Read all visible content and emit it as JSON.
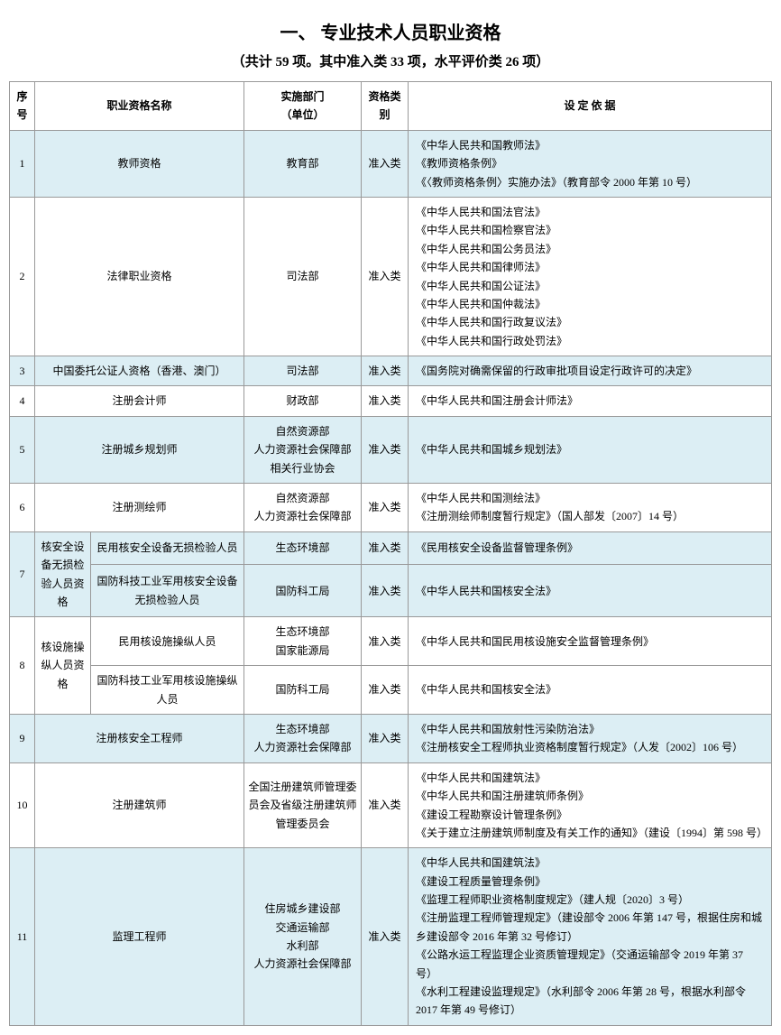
{
  "title": "一、 专业技术人员职业资格",
  "subtitle": "（共计 59 项。其中准入类 33 项，水平评价类 26 项）",
  "headers": {
    "seq": "序号",
    "name": "职业资格名称",
    "dept": "实施部门\n（单位）",
    "cat": "资格类别",
    "basis": "设 定 依 据"
  },
  "rows": {
    "r1": {
      "seq": "1",
      "name": "教师资格",
      "dept": "教育部",
      "cat": "准入类",
      "basis": "《中华人民共和国教师法》\n《教师资格条例》\n《〈教师资格条例〉实施办法》（教育部令 2000 年第 10 号）"
    },
    "r2": {
      "seq": "2",
      "name": "法律职业资格",
      "dept": "司法部",
      "cat": "准入类",
      "basis": "《中华人民共和国法官法》\n《中华人民共和国检察官法》\n《中华人民共和国公务员法》\n《中华人民共和国律师法》\n《中华人民共和国公证法》\n《中华人民共和国仲裁法》\n《中华人民共和国行政复议法》\n《中华人民共和国行政处罚法》"
    },
    "r3": {
      "seq": "3",
      "name": "中国委托公证人资格（香港、澳门）",
      "dept": "司法部",
      "cat": "准入类",
      "basis": "《国务院对确需保留的行政审批项目设定行政许可的决定》"
    },
    "r4": {
      "seq": "4",
      "name": "注册会计师",
      "dept": "财政部",
      "cat": "准入类",
      "basis": "《中华人民共和国注册会计师法》"
    },
    "r5": {
      "seq": "5",
      "name": "注册城乡规划师",
      "dept": "自然资源部\n人力资源社会保障部\n相关行业协会",
      "cat": "准入类",
      "basis": "《中华人民共和国城乡规划法》"
    },
    "r6": {
      "seq": "6",
      "name": "注册测绘师",
      "dept": "自然资源部\n人力资源社会保障部",
      "cat": "准入类",
      "basis": "《中华人民共和国测绘法》\n《注册测绘师制度暂行规定》（国人部发〔2007〕14 号）"
    },
    "r7": {
      "seq": "7",
      "group": "核安全设备无损检验人员资格",
      "a_name": "民用核安全设备无损检验人员",
      "a_dept": "生态环境部",
      "a_cat": "准入类",
      "a_basis": "《民用核安全设备监督管理条例》",
      "b_name": "国防科技工业军用核安全设备无损检验人员",
      "b_dept": "国防科工局",
      "b_cat": "准入类",
      "b_basis": "《中华人民共和国核安全法》"
    },
    "r8": {
      "seq": "8",
      "group": "核设施操纵人员资格",
      "a_name": "民用核设施操纵人员",
      "a_dept": "生态环境部\n国家能源局",
      "a_cat": "准入类",
      "a_basis": "《中华人民共和国民用核设施安全监督管理条例》",
      "b_name": "国防科技工业军用核设施操纵人员",
      "b_dept": "国防科工局",
      "b_cat": "准入类",
      "b_basis": "《中华人民共和国核安全法》"
    },
    "r9": {
      "seq": "9",
      "name": "注册核安全工程师",
      "dept": "生态环境部\n人力资源社会保障部",
      "cat": "准入类",
      "basis": "《中华人民共和国放射性污染防治法》\n《注册核安全工程师执业资格制度暂行规定》（人发〔2002〕106 号）"
    },
    "r10": {
      "seq": "10",
      "name": "注册建筑师",
      "dept": "全国注册建筑师管理委员会及省级注册建筑师管理委员会",
      "cat": "准入类",
      "basis": "《中华人民共和国建筑法》\n《中华人民共和国注册建筑师条例》\n《建设工程勘察设计管理条例》\n《关于建立注册建筑师制度及有关工作的通知》（建设〔1994〕第 598 号）"
    },
    "r11": {
      "seq": "11",
      "name": "监理工程师",
      "dept": "住房城乡建设部\n交通运输部\n水利部\n人力资源社会保障部",
      "cat": "准入类",
      "basis": "《中华人民共和国建筑法》\n《建设工程质量管理条例》\n《监理工程师职业资格制度规定》（建人规〔2020〕3 号）\n《注册监理工程师管理规定》（建设部令 2006 年第 147 号，根据住房和城乡建设部令 2016 年第 32 号修订）\n《公路水运工程监理企业资质管理规定》（交通运输部令 2019 年第 37 号）\n《水利工程建设监理规定》（水利部令 2006 年第 28 号，根据水利部令 2017 年第 49 号修订）"
    }
  }
}
